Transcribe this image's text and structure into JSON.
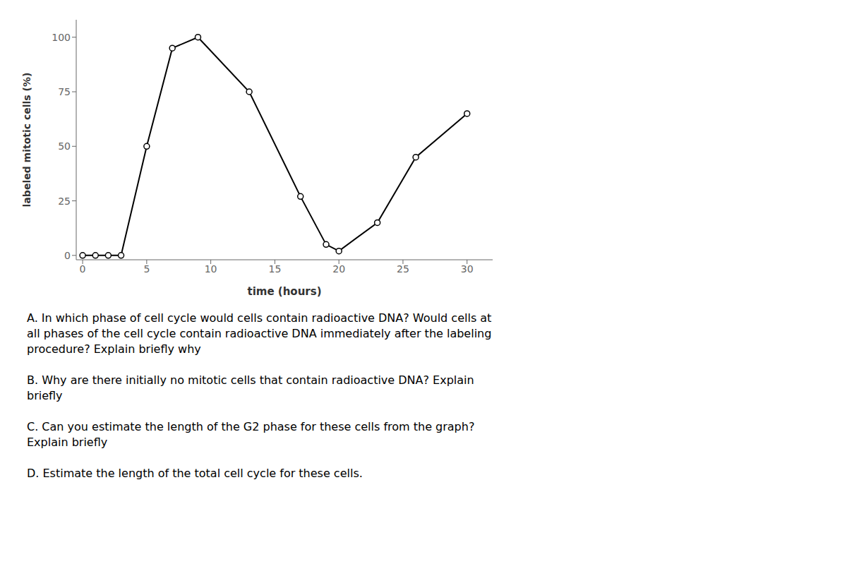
{
  "chart_data": {
    "type": "line",
    "x": [
      0,
      1,
      2,
      3,
      5,
      7,
      9,
      13,
      17,
      19,
      20,
      23,
      26,
      30
    ],
    "values": [
      0,
      0,
      0,
      0,
      50,
      95,
      100,
      75,
      27,
      5,
      2,
      15,
      45,
      65
    ],
    "color": "#000000",
    "marker": "circle",
    "grid": false,
    "xlim": [
      -0.5,
      32
    ],
    "ylim": [
      -2,
      108
    ],
    "xticks": [
      0,
      5,
      10,
      15,
      20,
      25,
      30
    ],
    "yticks": [
      0,
      25,
      50,
      75,
      100
    ],
    "xlabel": "time (hours)",
    "ylabel": "labeled mitotic cells (%)",
    "annotations": [
      "A. In which phase of cell cycle would cells contain radioactive DNA? Would cells at\nall phases of the cell cycle contain radioactive DNA immediately after the labeling\nprocedure? Explain briefly why",
      "B. Why are there initially no mitotic cells that contain radioactive DNA? Explain\nbriefly",
      "C. Can you estimate the length of the G2 phase for these cells from the graph?\nExplain briefly",
      "D. Estimate the length of the total cell cycle for these cells."
    ]
  }
}
